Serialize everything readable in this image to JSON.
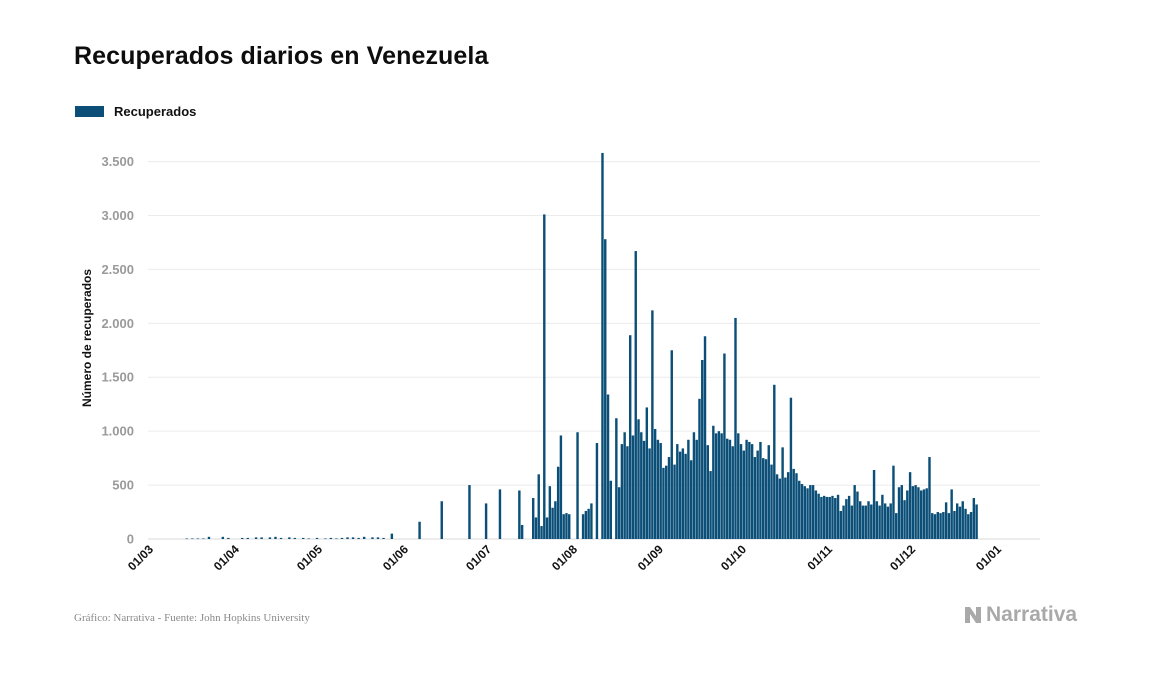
{
  "header": {
    "title": "Recuperados diarios en Venezuela"
  },
  "legend": {
    "label": "Recuperados",
    "color": "#0b4f78"
  },
  "footer": {
    "source": "Gráfico: Narrativa - Fuente: John Hopkins University",
    "brand": "Narrativa",
    "brand_icon": "narrativa-logo-icon"
  },
  "chart_data": {
    "type": "bar",
    "title": "Recuperados diarios en Venezuela",
    "xlabel": "",
    "ylabel": "Número de recuperados",
    "ylim": [
      0,
      3700
    ],
    "yticks": [
      0,
      500,
      1000,
      1500,
      2000,
      2500,
      3000,
      3500
    ],
    "ytick_labels": [
      "0",
      "500",
      "1.000",
      "1.500",
      "2.000",
      "2.500",
      "3.000",
      "3.500"
    ],
    "xticks": [
      {
        "label": "01/03",
        "day": 0
      },
      {
        "label": "01/04",
        "day": 31
      },
      {
        "label": "01/05",
        "day": 61
      },
      {
        "label": "01/06",
        "day": 92
      },
      {
        "label": "01/07",
        "day": 122
      },
      {
        "label": "01/08",
        "day": 153
      },
      {
        "label": "01/09",
        "day": 184
      },
      {
        "label": "01/10",
        "day": 214
      },
      {
        "label": "01/11",
        "day": 245
      },
      {
        "label": "01/12",
        "day": 275
      },
      {
        "label": "01/01",
        "day": 306
      }
    ],
    "grid": true,
    "legend_position": "top-left",
    "bar_color": "#0b4f78",
    "series": [
      {
        "name": "Recuperados",
        "points": [
          [
            14,
            5
          ],
          [
            16,
            5
          ],
          [
            18,
            5
          ],
          [
            20,
            5
          ],
          [
            22,
            20
          ],
          [
            27,
            20
          ],
          [
            29,
            10
          ],
          [
            34,
            10
          ],
          [
            36,
            10
          ],
          [
            39,
            15
          ],
          [
            41,
            15
          ],
          [
            44,
            15
          ],
          [
            46,
            20
          ],
          [
            48,
            10
          ],
          [
            51,
            15
          ],
          [
            53,
            10
          ],
          [
            56,
            10
          ],
          [
            58,
            5
          ],
          [
            61,
            10
          ],
          [
            64,
            5
          ],
          [
            66,
            10
          ],
          [
            68,
            5
          ],
          [
            70,
            10
          ],
          [
            72,
            15
          ],
          [
            74,
            15
          ],
          [
            76,
            10
          ],
          [
            78,
            20
          ],
          [
            81,
            15
          ],
          [
            83,
            15
          ],
          [
            85,
            10
          ],
          [
            88,
            50
          ],
          [
            98,
            160
          ],
          [
            106,
            350
          ],
          [
            116,
            500
          ],
          [
            122,
            330
          ],
          [
            127,
            460
          ],
          [
            134,
            450
          ],
          [
            135,
            130
          ],
          [
            139,
            380
          ],
          [
            140,
            200
          ],
          [
            141,
            600
          ],
          [
            142,
            120
          ],
          [
            143,
            3010
          ],
          [
            144,
            200
          ],
          [
            145,
            490
          ],
          [
            146,
            290
          ],
          [
            147,
            350
          ],
          [
            148,
            670
          ],
          [
            149,
            960
          ],
          [
            150,
            230
          ],
          [
            151,
            240
          ],
          [
            152,
            230
          ],
          [
            155,
            990
          ],
          [
            157,
            230
          ],
          [
            158,
            260
          ],
          [
            159,
            280
          ],
          [
            160,
            330
          ],
          [
            162,
            890
          ],
          [
            164,
            3580
          ],
          [
            165,
            2780
          ],
          [
            166,
            1340
          ],
          [
            167,
            540
          ],
          [
            169,
            1120
          ],
          [
            170,
            480
          ],
          [
            171,
            880
          ],
          [
            172,
            990
          ],
          [
            173,
            860
          ],
          [
            174,
            1890
          ],
          [
            175,
            960
          ],
          [
            176,
            2670
          ],
          [
            177,
            1110
          ],
          [
            178,
            990
          ],
          [
            179,
            910
          ],
          [
            180,
            1220
          ],
          [
            181,
            840
          ],
          [
            182,
            2120
          ],
          [
            183,
            1020
          ],
          [
            184,
            920
          ],
          [
            185,
            890
          ],
          [
            186,
            660
          ],
          [
            187,
            680
          ],
          [
            188,
            760
          ],
          [
            189,
            1750
          ],
          [
            190,
            690
          ],
          [
            191,
            880
          ],
          [
            192,
            810
          ],
          [
            193,
            840
          ],
          [
            194,
            790
          ],
          [
            195,
            920
          ],
          [
            196,
            730
          ],
          [
            197,
            990
          ],
          [
            198,
            920
          ],
          [
            199,
            1300
          ],
          [
            200,
            1660
          ],
          [
            201,
            1880
          ],
          [
            202,
            870
          ],
          [
            203,
            630
          ],
          [
            204,
            1050
          ],
          [
            205,
            980
          ],
          [
            206,
            1000
          ],
          [
            207,
            980
          ],
          [
            208,
            1720
          ],
          [
            209,
            930
          ],
          [
            210,
            920
          ],
          [
            211,
            860
          ],
          [
            212,
            2050
          ],
          [
            213,
            980
          ],
          [
            214,
            880
          ],
          [
            215,
            820
          ],
          [
            216,
            920
          ],
          [
            217,
            900
          ],
          [
            218,
            880
          ],
          [
            219,
            760
          ],
          [
            220,
            820
          ],
          [
            221,
            900
          ],
          [
            222,
            750
          ],
          [
            223,
            740
          ],
          [
            224,
            870
          ],
          [
            225,
            690
          ],
          [
            226,
            1430
          ],
          [
            227,
            600
          ],
          [
            228,
            560
          ],
          [
            229,
            850
          ],
          [
            230,
            570
          ],
          [
            231,
            620
          ],
          [
            232,
            1310
          ],
          [
            233,
            650
          ],
          [
            234,
            610
          ],
          [
            235,
            540
          ],
          [
            236,
            510
          ],
          [
            237,
            490
          ],
          [
            238,
            470
          ],
          [
            239,
            500
          ],
          [
            240,
            500
          ],
          [
            241,
            450
          ],
          [
            242,
            420
          ],
          [
            243,
            390
          ],
          [
            244,
            400
          ],
          [
            245,
            390
          ],
          [
            246,
            390
          ],
          [
            247,
            400
          ],
          [
            248,
            380
          ],
          [
            249,
            410
          ],
          [
            250,
            260
          ],
          [
            251,
            310
          ],
          [
            252,
            370
          ],
          [
            253,
            400
          ],
          [
            254,
            310
          ],
          [
            255,
            500
          ],
          [
            256,
            440
          ],
          [
            257,
            350
          ],
          [
            258,
            310
          ],
          [
            259,
            310
          ],
          [
            260,
            350
          ],
          [
            261,
            320
          ],
          [
            262,
            640
          ],
          [
            263,
            350
          ],
          [
            264,
            310
          ],
          [
            265,
            410
          ],
          [
            266,
            330
          ],
          [
            267,
            300
          ],
          [
            268,
            330
          ],
          [
            269,
            680
          ],
          [
            270,
            240
          ],
          [
            271,
            480
          ],
          [
            272,
            500
          ],
          [
            273,
            360
          ],
          [
            274,
            450
          ],
          [
            275,
            620
          ],
          [
            276,
            490
          ],
          [
            277,
            500
          ],
          [
            278,
            480
          ],
          [
            279,
            450
          ],
          [
            280,
            460
          ],
          [
            281,
            470
          ],
          [
            282,
            760
          ],
          [
            283,
            240
          ],
          [
            284,
            230
          ],
          [
            285,
            250
          ],
          [
            286,
            240
          ],
          [
            287,
            250
          ],
          [
            288,
            340
          ],
          [
            289,
            240
          ],
          [
            290,
            460
          ],
          [
            291,
            260
          ],
          [
            292,
            330
          ],
          [
            293,
            300
          ],
          [
            294,
            350
          ],
          [
            295,
            280
          ],
          [
            296,
            230
          ],
          [
            297,
            250
          ],
          [
            298,
            380
          ],
          [
            299,
            320
          ]
        ]
      }
    ]
  }
}
